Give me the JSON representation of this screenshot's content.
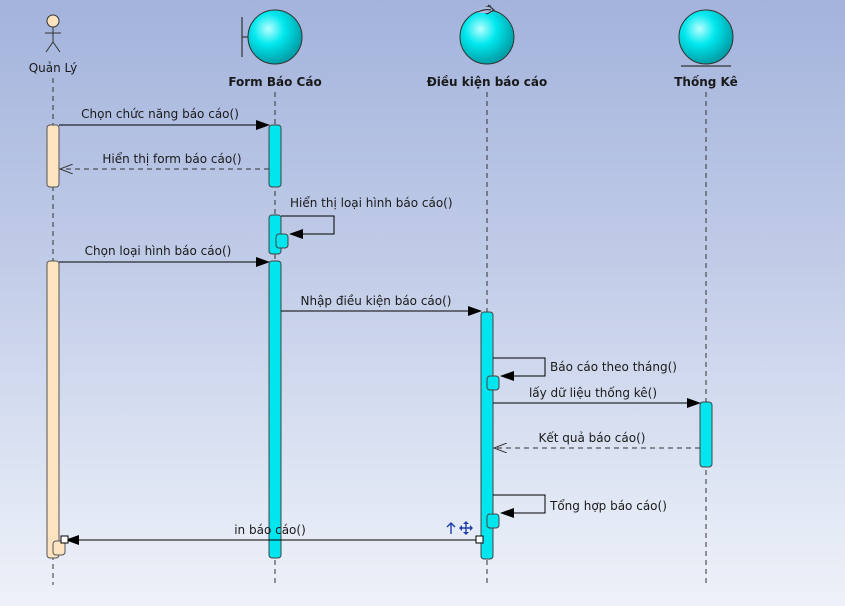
{
  "participants": {
    "actor": "Quản Lý",
    "form": "Form Báo Cáo",
    "control": "Điều kiện báo cáo",
    "entity": "Thống Kê"
  },
  "messages": {
    "m1": "Chọn chức năng báo cáo()",
    "m2": "Hiển thị form báo cáo()",
    "m3": "Hiển thị loại hình báo cáo()",
    "m4": "Chọn loại hình báo cáo()",
    "m5": "Nhập điều kiện báo cáo()",
    "m6": "Báo cáo theo tháng()",
    "m7": "lấy dữ liệu thống kê()",
    "m8": "Kết quả báo cáo()",
    "m9": "Tổng hợp báo cáo()",
    "m10": "in báo cáo()"
  },
  "colors": {
    "activation_control": "#00e5ee",
    "activation_actor": "#fde3bf",
    "object_fill": "#00e8ee"
  }
}
